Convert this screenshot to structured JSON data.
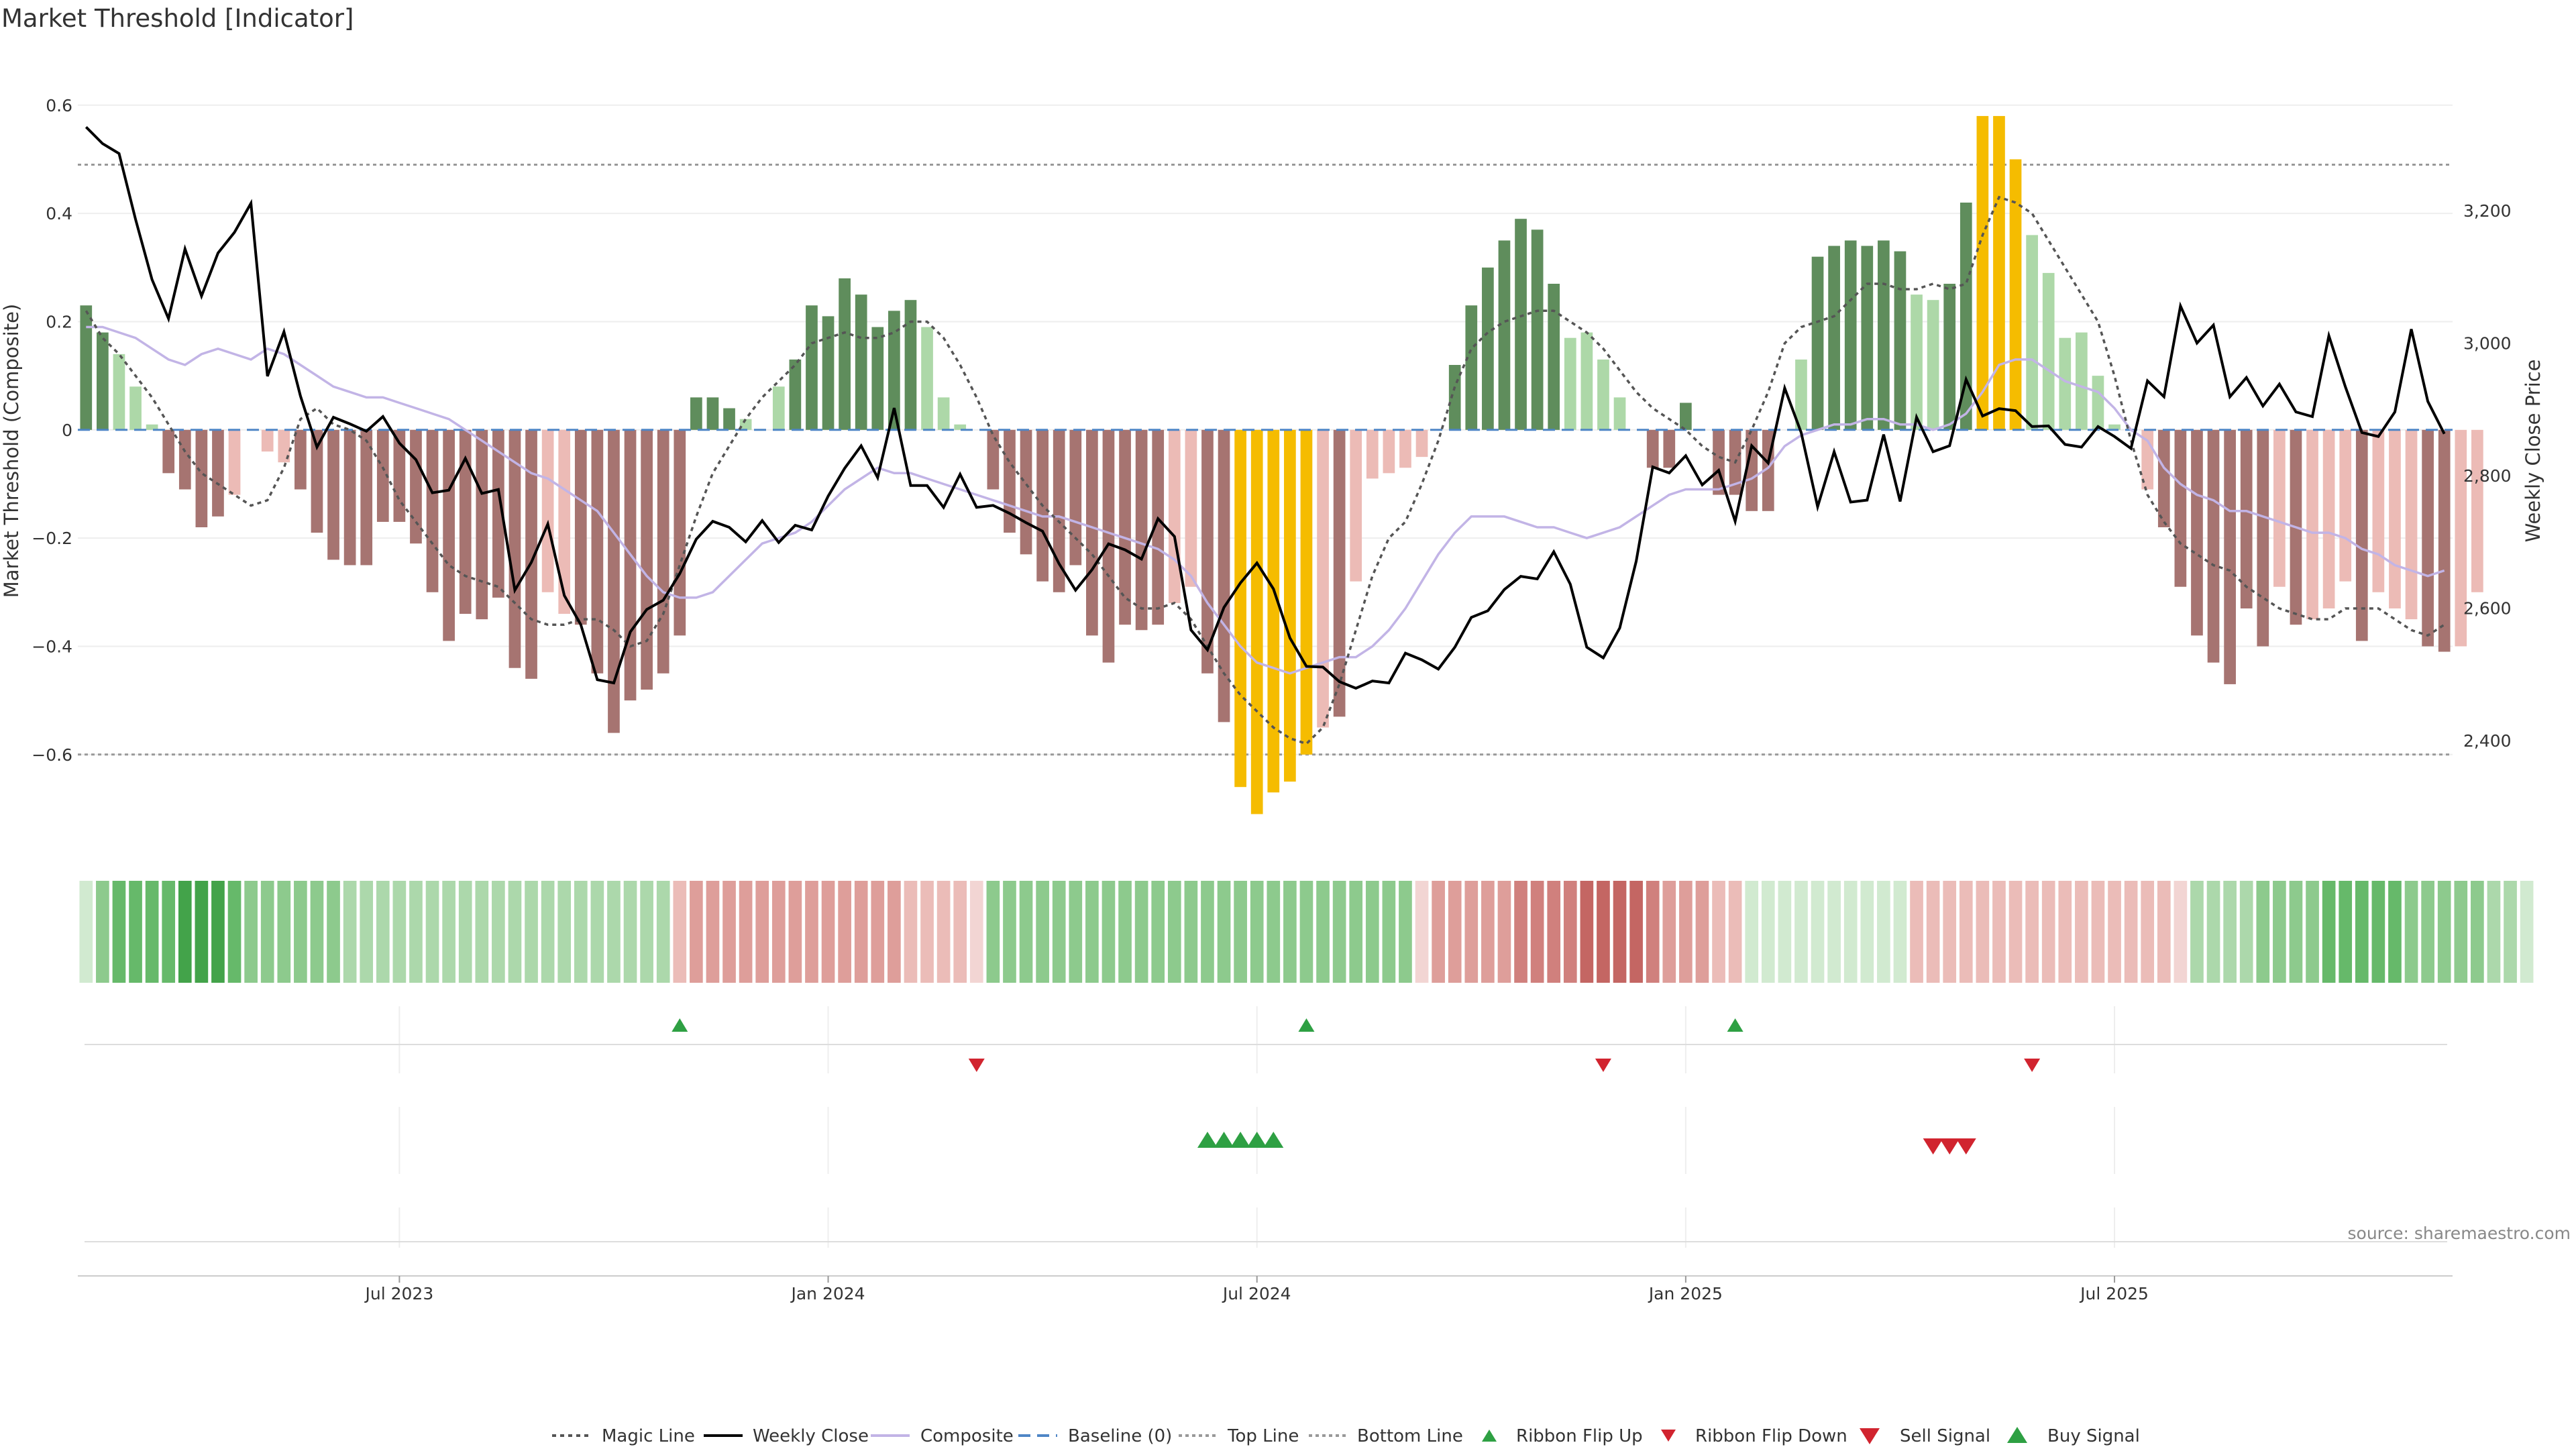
{
  "chart_data": {
    "type": "bar",
    "title": "Market Threshold [Indicator]",
    "ylabel": "Market Threshold (Composite)",
    "y2label": "Weekly Close Price",
    "source_note": "source: sharemaestro.com",
    "x_tick_labels": [
      "Jul 2023",
      "Jan 2024",
      "Jul 2024",
      "Jan 2025",
      "Jul 2025"
    ],
    "x_tick_weeks": [
      19.5,
      45.5,
      71.5,
      97.5,
      123.5
    ],
    "y_ticks": [
      "0.6",
      "0.4",
      "0.2",
      "0",
      "−0.2",
      "−0.4",
      "−0.6"
    ],
    "y_tick_values": [
      0.6,
      0.4,
      0.2,
      0,
      -0.2,
      -0.4,
      -0.6
    ],
    "y2_ticks": [
      "3,200",
      "3,000",
      "2,800",
      "2,600",
      "2,400"
    ],
    "y2_tick_values": [
      3200,
      3000,
      2800,
      2600,
      2400
    ],
    "ylim": [
      -0.78,
      0.72
    ],
    "y2lim": [
      2232,
      3457
    ],
    "top_line": 0.49,
    "bottom_line": -0.6,
    "weeks": 144,
    "legend": [
      "Magic Line",
      "Weekly Close",
      "Composite",
      "Baseline (0)",
      "Top Line",
      "Bottom Line",
      "Ribbon Flip Up",
      "Ribbon Flip Down",
      "Sell Signal",
      "Buy Signal"
    ],
    "bars": [
      0.23,
      0.18,
      0.14,
      0.08,
      0.01,
      -0.08,
      -0.11,
      -0.18,
      -0.16,
      -0.12,
      0.0,
      -0.04,
      -0.06,
      -0.11,
      -0.19,
      -0.24,
      -0.25,
      -0.25,
      -0.17,
      -0.17,
      -0.21,
      -0.3,
      -0.39,
      -0.34,
      -0.35,
      -0.31,
      -0.44,
      -0.46,
      -0.3,
      -0.34,
      -0.36,
      -0.45,
      -0.56,
      -0.5,
      -0.48,
      -0.45,
      -0.38,
      0.06,
      0.06,
      0.04,
      0.02,
      0.0,
      0.08,
      0.13,
      0.23,
      0.21,
      0.28,
      0.25,
      0.19,
      0.22,
      0.24,
      0.19,
      0.06,
      0.01,
      0.0,
      -0.11,
      -0.19,
      -0.23,
      -0.28,
      -0.3,
      -0.25,
      -0.38,
      -0.43,
      -0.36,
      -0.37,
      -0.36,
      -0.32,
      -0.29,
      -0.45,
      -0.54,
      -0.66,
      -0.71,
      -0.67,
      -0.65,
      -0.6,
      -0.55,
      -0.53,
      -0.28,
      -0.09,
      -0.08,
      -0.07,
      -0.05,
      0.0,
      0.12,
      0.23,
      0.3,
      0.35,
      0.39,
      0.37,
      0.27,
      0.17,
      0.18,
      0.13,
      0.06,
      0.0,
      -0.07,
      -0.07,
      0.05,
      0.0,
      -0.12,
      -0.12,
      -0.15,
      -0.15,
      0.0,
      0.13,
      0.32,
      0.34,
      0.35,
      0.34,
      0.35,
      0.33,
      0.25,
      0.24,
      0.27,
      0.42,
      0.58,
      0.58,
      0.5,
      0.36,
      0.29,
      0.17,
      0.18,
      0.1,
      0.01,
      0.0,
      -0.11,
      -0.18,
      -0.29,
      -0.38,
      -0.43,
      -0.47,
      -0.33,
      -0.4,
      -0.29,
      -0.36,
      -0.35,
      -0.33,
      -0.28,
      -0.39,
      -0.3,
      -0.33,
      -0.35,
      -0.4,
      -0.41,
      -0.4,
      -0.3
    ],
    "weekly_close": [
      3326,
      3301,
      3286,
      3187,
      3096,
      3037,
      3142,
      3071,
      3136,
      3167,
      3211,
      2950,
      3017,
      2920,
      2843,
      2888,
      2878,
      2867,
      2889,
      2849,
      2824,
      2774,
      2778,
      2826,
      2773,
      2779,
      2627,
      2669,
      2727,
      2619,
      2575,
      2492,
      2487,
      2564,
      2598,
      2612,
      2652,
      2704,
      2731,
      2722,
      2700,
      2732,
      2699,
      2725,
      2718,
      2769,
      2811,
      2845,
      2797,
      2902,
      2785,
      2785,
      2752,
      2802,
      2752,
      2755,
      2743,
      2729,
      2716,
      2667,
      2627,
      2658,
      2697,
      2688,
      2674,
      2735,
      2708,
      2567,
      2537,
      2601,
      2638,
      2668,
      2629,
      2555,
      2512,
      2511,
      2489,
      2479,
      2490,
      2487,
      2532,
      2522,
      2508,
      2541,
      2586,
      2596,
      2628,
      2648,
      2644,
      2685,
      2636,
      2541,
      2525,
      2570,
      2671,
      2813,
      2804,
      2830,
      2786,
      2808,
      2731,
      2845,
      2819,
      2932,
      2865,
      2753,
      2836,
      2760,
      2763,
      2862,
      2761,
      2888,
      2836,
      2845,
      2945,
      2890,
      2901,
      2898,
      2874,
      2875,
      2847,
      2843,
      2874,
      2859,
      2841,
      2943,
      2919,
      3056,
      3000,
      3027,
      2919,
      2948,
      2905,
      2938,
      2896,
      2889,
      3011,
      2934,
      2865,
      2859,
      2896,
      3021,
      2912,
      2863
    ],
    "composite": [
      0.19,
      0.19,
      0.18,
      0.17,
      0.15,
      0.13,
      0.12,
      0.14,
      0.15,
      0.14,
      0.13,
      0.15,
      0.14,
      0.12,
      0.1,
      0.08,
      0.07,
      0.06,
      0.06,
      0.05,
      0.04,
      0.03,
      0.02,
      0.0,
      -0.02,
      -0.04,
      -0.06,
      -0.08,
      -0.09,
      -0.11,
      -0.13,
      -0.15,
      -0.19,
      -0.23,
      -0.27,
      -0.3,
      -0.31,
      -0.31,
      -0.3,
      -0.27,
      -0.24,
      -0.21,
      -0.2,
      -0.19,
      -0.17,
      -0.14,
      -0.11,
      -0.09,
      -0.07,
      -0.08,
      -0.08,
      -0.09,
      -0.1,
      -0.11,
      -0.12,
      -0.13,
      -0.14,
      -0.15,
      -0.16,
      -0.16,
      -0.17,
      -0.18,
      -0.19,
      -0.2,
      -0.21,
      -0.22,
      -0.24,
      -0.27,
      -0.32,
      -0.36,
      -0.4,
      -0.43,
      -0.44,
      -0.45,
      -0.44,
      -0.43,
      -0.42,
      -0.42,
      -0.4,
      -0.37,
      -0.33,
      -0.28,
      -0.23,
      -0.19,
      -0.16,
      -0.16,
      -0.16,
      -0.17,
      -0.18,
      -0.18,
      -0.19,
      -0.2,
      -0.19,
      -0.18,
      -0.16,
      -0.14,
      -0.12,
      -0.11,
      -0.11,
      -0.11,
      -0.1,
      -0.09,
      -0.07,
      -0.03,
      -0.01,
      0.0,
      0.01,
      0.01,
      0.02,
      0.02,
      0.01,
      0.01,
      0.0,
      0.01,
      0.03,
      0.07,
      0.12,
      0.13,
      0.13,
      0.11,
      0.09,
      0.08,
      0.07,
      0.04,
      0.0,
      -0.02,
      -0.07,
      -0.1,
      -0.12,
      -0.13,
      -0.15,
      -0.15,
      -0.16,
      -0.17,
      -0.18,
      -0.19,
      -0.19,
      -0.2,
      -0.22,
      -0.23,
      -0.25,
      -0.26,
      -0.27,
      -0.26
    ],
    "magic_line": [
      0.22,
      0.17,
      0.14,
      0.1,
      0.06,
      0.01,
      -0.04,
      -0.08,
      -0.1,
      -0.12,
      -0.14,
      -0.13,
      -0.07,
      0.02,
      0.04,
      0.01,
      0.0,
      -0.02,
      -0.07,
      -0.13,
      -0.17,
      -0.21,
      -0.25,
      -0.27,
      -0.28,
      -0.29,
      -0.32,
      -0.35,
      -0.36,
      -0.36,
      -0.35,
      -0.35,
      -0.37,
      -0.4,
      -0.39,
      -0.34,
      -0.25,
      -0.16,
      -0.08,
      -0.03,
      0.02,
      0.06,
      0.09,
      0.12,
      0.16,
      0.17,
      0.18,
      0.17,
      0.17,
      0.18,
      0.2,
      0.2,
      0.17,
      0.12,
      0.06,
      -0.01,
      -0.06,
      -0.1,
      -0.14,
      -0.17,
      -0.2,
      -0.23,
      -0.27,
      -0.31,
      -0.33,
      -0.33,
      -0.32,
      -0.35,
      -0.4,
      -0.45,
      -0.49,
      -0.52,
      -0.55,
      -0.57,
      -0.58,
      -0.55,
      -0.47,
      -0.37,
      -0.27,
      -0.2,
      -0.17,
      -0.1,
      -0.02,
      0.08,
      0.15,
      0.18,
      0.2,
      0.21,
      0.22,
      0.22,
      0.2,
      0.18,
      0.15,
      0.11,
      0.07,
      0.04,
      0.02,
      0.0,
      -0.03,
      -0.05,
      -0.06,
      0.0,
      0.07,
      0.16,
      0.19,
      0.2,
      0.21,
      0.24,
      0.27,
      0.27,
      0.26,
      0.26,
      0.27,
      0.26,
      0.27,
      0.36,
      0.43,
      0.42,
      0.4,
      0.35,
      0.3,
      0.25,
      0.2,
      0.1,
      -0.02,
      -0.12,
      -0.17,
      -0.21,
      -0.23,
      -0.25,
      -0.26,
      -0.29,
      -0.31,
      -0.33,
      -0.34,
      -0.35,
      -0.35,
      -0.33,
      -0.33,
      -0.33,
      -0.35,
      -0.37,
      -0.38,
      -0.36
    ],
    "ribbon": [
      1,
      3,
      4,
      4,
      4,
      4,
      5,
      5,
      5,
      4,
      3,
      3,
      3,
      3,
      3,
      3,
      2,
      2,
      2,
      2,
      2,
      2,
      2,
      2,
      2,
      2,
      2,
      2,
      2,
      2,
      2,
      2,
      2,
      2,
      2,
      2,
      -2,
      -3,
      -3,
      -3,
      -3,
      -3,
      -3,
      -3,
      -3,
      -3,
      -3,
      -3,
      -3,
      -3,
      -2,
      -2,
      -2,
      -2,
      -1,
      3,
      3,
      3,
      3,
      3,
      3,
      3,
      3,
      3,
      3,
      3,
      3,
      3,
      3,
      3,
      3,
      3,
      3,
      3,
      3,
      3,
      3,
      3,
      3,
      3,
      3,
      -1,
      -3,
      -3,
      -3,
      -3,
      -3,
      -4,
      -4,
      -4,
      -4,
      -5,
      -5,
      -5,
      -5,
      -4,
      -3,
      -3,
      -3,
      -2,
      -2,
      1,
      1,
      1,
      1,
      1,
      1,
      1,
      1,
      1,
      1,
      -2,
      -2,
      -2,
      -2,
      -2,
      -2,
      -2,
      -2,
      -2,
      -2,
      -2,
      -2,
      -2,
      -2,
      -2,
      -2,
      -1,
      2,
      2,
      2,
      2,
      3,
      3,
      3,
      3,
      4,
      4,
      4,
      4,
      4,
      3,
      3,
      3,
      3,
      3,
      2,
      2,
      1
    ],
    "ribbon_flip_up_weeks": [
      36.5,
      74.5,
      100.5
    ],
    "ribbon_flip_down_weeks": [
      54.5,
      92.5,
      118.5
    ],
    "buy_signal_weeks": [
      68,
      69,
      70,
      71,
      72
    ],
    "sell_signal_weeks": [
      112,
      113,
      114
    ]
  }
}
